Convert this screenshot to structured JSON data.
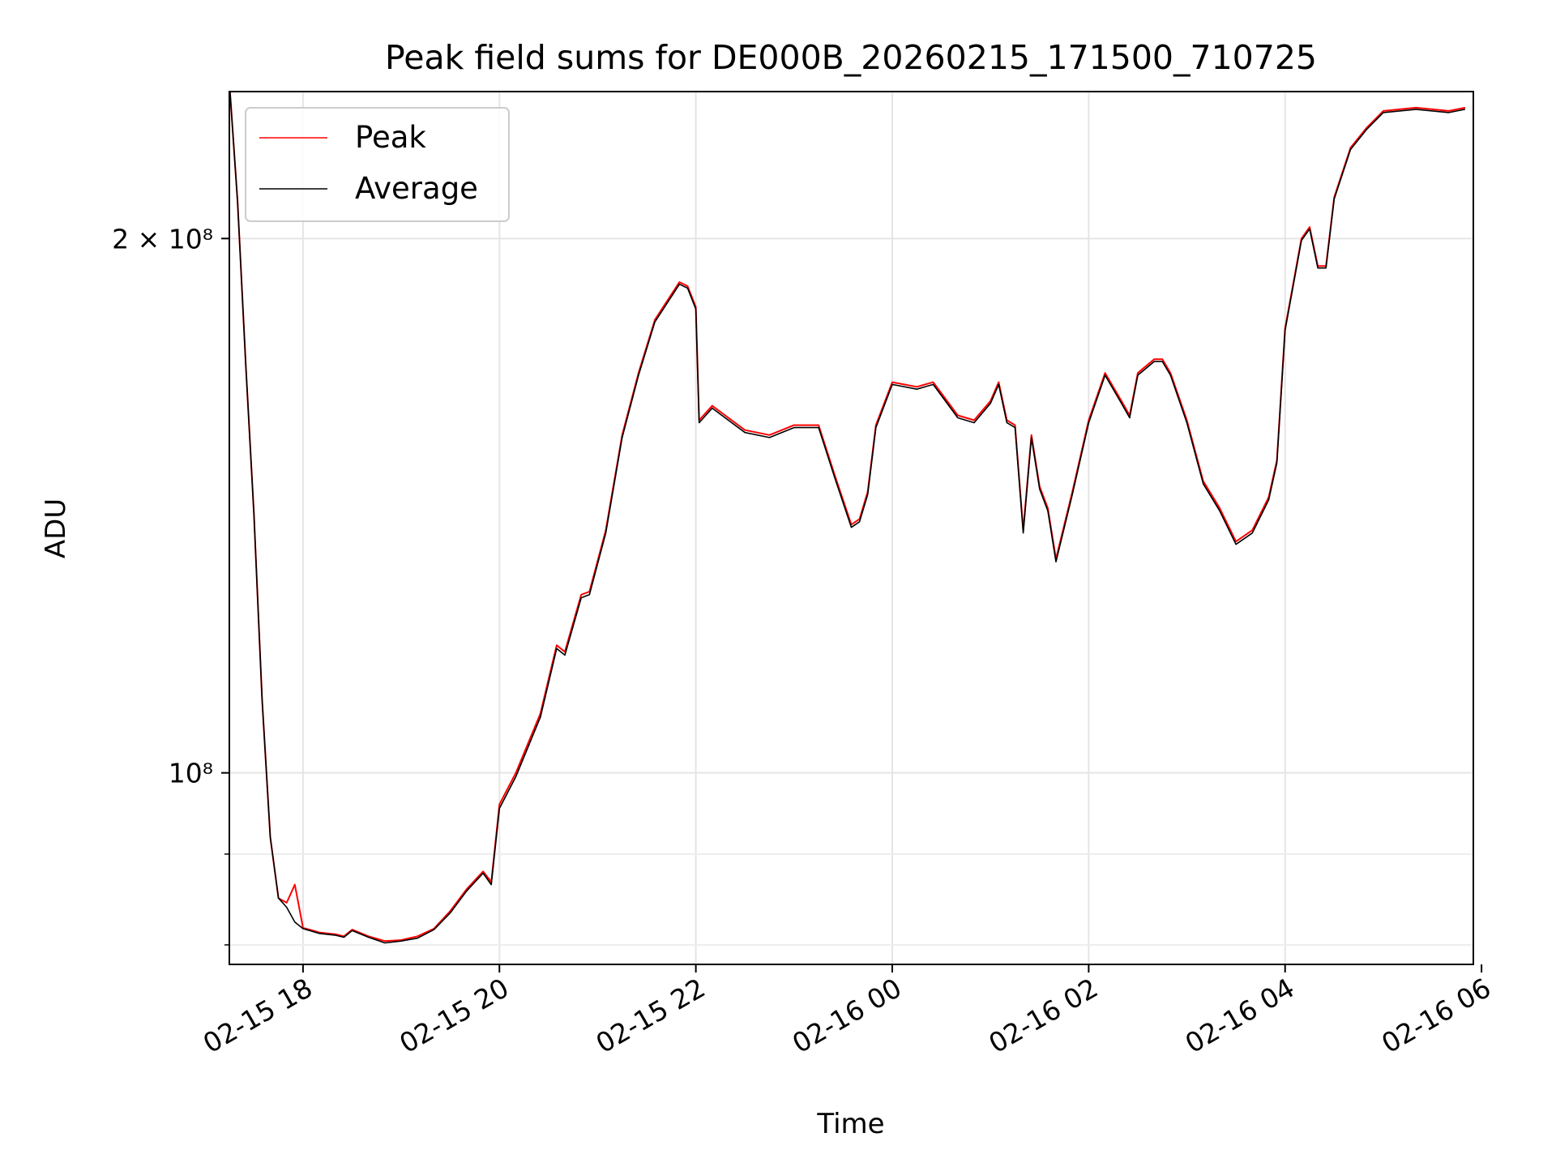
{
  "chart_data": {
    "type": "line",
    "title": "Peak field sums for DE000B_20260215_171500_710725",
    "xlabel": "Time",
    "ylabel": "ADU",
    "y_scale": "log",
    "grid": true,
    "legend_position": "top-left",
    "x_range": [
      "2026-02-15 17:15",
      "2026-02-16 05:55"
    ],
    "ylim": [
      78000000,
      242000000
    ],
    "x_ticks": [
      {
        "t": "2026-02-15 18:00",
        "label": "02-15 18"
      },
      {
        "t": "2026-02-15 20:00",
        "label": "02-15 20"
      },
      {
        "t": "2026-02-15 22:00",
        "label": "02-15 22"
      },
      {
        "t": "2026-02-16 00:00",
        "label": "02-16 00"
      },
      {
        "t": "2026-02-16 02:00",
        "label": "02-16 02"
      },
      {
        "t": "2026-02-16 04:00",
        "label": "02-16 04"
      },
      {
        "t": "2026-02-16 06:00",
        "label": "02-16 06"
      }
    ],
    "y_ticks": [
      {
        "v": 100000000,
        "label": "10⁸"
      },
      {
        "v": 200000000,
        "label": "2 × 10⁸"
      }
    ],
    "y_minor_ticks": [
      80000000,
      90000000
    ],
    "series": [
      {
        "name": "Peak",
        "color": "#ff0000",
        "points": [
          [
            "2026-02-15 17:15",
            245000000
          ],
          [
            "2026-02-15 17:20",
            210000000
          ],
          [
            "2026-02-15 17:25",
            170000000
          ],
          [
            "2026-02-15 17:30",
            140000000
          ],
          [
            "2026-02-15 17:35",
            110000000
          ],
          [
            "2026-02-15 17:40",
            92000000
          ],
          [
            "2026-02-15 17:45",
            85000000
          ],
          [
            "2026-02-15 17:50",
            84500000
          ],
          [
            "2026-02-15 17:55",
            86500000
          ],
          [
            "2026-02-15 18:00",
            81800000
          ],
          [
            "2026-02-15 18:10",
            81300000
          ],
          [
            "2026-02-15 18:20",
            81100000
          ],
          [
            "2026-02-15 18:25",
            80900000
          ],
          [
            "2026-02-15 18:30",
            81600000
          ],
          [
            "2026-02-15 18:40",
            80900000
          ],
          [
            "2026-02-15 18:50",
            80400000
          ],
          [
            "2026-02-15 19:00",
            80500000
          ],
          [
            "2026-02-15 19:10",
            80900000
          ],
          [
            "2026-02-15 19:20",
            81700000
          ],
          [
            "2026-02-15 19:30",
            83600000
          ],
          [
            "2026-02-15 19:40",
            86000000
          ],
          [
            "2026-02-15 19:50",
            88000000
          ],
          [
            "2026-02-15 19:55",
            86800000
          ],
          [
            "2026-02-15 20:00",
            96000000
          ],
          [
            "2026-02-15 20:10",
            100000000
          ],
          [
            "2026-02-15 20:25",
            108000000
          ],
          [
            "2026-02-15 20:35",
            118000000
          ],
          [
            "2026-02-15 20:40",
            117000000
          ],
          [
            "2026-02-15 20:50",
            126000000
          ],
          [
            "2026-02-15 20:55",
            126500000
          ],
          [
            "2026-02-15 21:05",
            137000000
          ],
          [
            "2026-02-15 21:15",
            155000000
          ],
          [
            "2026-02-15 21:25",
            168000000
          ],
          [
            "2026-02-15 21:35",
            180000000
          ],
          [
            "2026-02-15 21:50",
            189000000
          ],
          [
            "2026-02-15 21:55",
            188000000
          ],
          [
            "2026-02-15 22:00",
            183000000
          ],
          [
            "2026-02-15 22:02",
            158000000
          ],
          [
            "2026-02-15 22:10",
            161000000
          ],
          [
            "2026-02-15 22:30",
            156000000
          ],
          [
            "2026-02-15 22:45",
            155000000
          ],
          [
            "2026-02-15 23:00",
            157000000
          ],
          [
            "2026-02-15 23:15",
            157000000
          ],
          [
            "2026-02-15 23:25",
            147000000
          ],
          [
            "2026-02-15 23:35",
            138000000
          ],
          [
            "2026-02-15 23:40",
            139000000
          ],
          [
            "2026-02-15 23:45",
            144000000
          ],
          [
            "2026-02-15 23:50",
            157000000
          ],
          [
            "2026-02-16 00:00",
            166000000
          ],
          [
            "2026-02-16 00:15",
            165000000
          ],
          [
            "2026-02-16 00:25",
            166000000
          ],
          [
            "2026-02-16 00:40",
            159000000
          ],
          [
            "2026-02-16 00:50",
            158000000
          ],
          [
            "2026-02-16 01:00",
            162000000
          ],
          [
            "2026-02-16 01:05",
            166000000
          ],
          [
            "2026-02-16 01:10",
            158000000
          ],
          [
            "2026-02-16 01:15",
            157000000
          ],
          [
            "2026-02-16 01:20",
            137000000
          ],
          [
            "2026-02-16 01:25",
            155000000
          ],
          [
            "2026-02-16 01:30",
            145000000
          ],
          [
            "2026-02-16 01:35",
            141000000
          ],
          [
            "2026-02-16 01:40",
            132000000
          ],
          [
            "2026-02-16 01:50",
            144000000
          ],
          [
            "2026-02-16 02:00",
            158000000
          ],
          [
            "2026-02-16 02:10",
            168000000
          ],
          [
            "2026-02-16 02:20",
            162000000
          ],
          [
            "2026-02-16 02:25",
            159000000
          ],
          [
            "2026-02-16 02:30",
            168000000
          ],
          [
            "2026-02-16 02:40",
            171000000
          ],
          [
            "2026-02-16 02:45",
            171000000
          ],
          [
            "2026-02-16 02:50",
            168000000
          ],
          [
            "2026-02-16 03:00",
            158000000
          ],
          [
            "2026-02-16 03:10",
            146000000
          ],
          [
            "2026-02-16 03:20",
            141000000
          ],
          [
            "2026-02-16 03:30",
            135000000
          ],
          [
            "2026-02-16 03:40",
            137000000
          ],
          [
            "2026-02-16 03:50",
            143000000
          ],
          [
            "2026-02-16 03:55",
            150000000
          ],
          [
            "2026-02-16 04:00",
            178000000
          ],
          [
            "2026-02-16 04:10",
            200000000
          ],
          [
            "2026-02-16 04:15",
            203000000
          ],
          [
            "2026-02-16 04:20",
            193000000
          ],
          [
            "2026-02-16 04:25",
            193000000
          ],
          [
            "2026-02-16 04:30",
            211000000
          ],
          [
            "2026-02-16 04:40",
            225000000
          ],
          [
            "2026-02-16 04:50",
            231000000
          ],
          [
            "2026-02-16 05:00",
            236000000
          ],
          [
            "2026-02-16 05:20",
            237000000
          ],
          [
            "2026-02-16 05:40",
            236000000
          ],
          [
            "2026-02-16 05:50",
            237000000
          ]
        ]
      },
      {
        "name": "Average",
        "color": "#000000",
        "points": [
          [
            "2026-02-15 17:15",
            245000000
          ],
          [
            "2026-02-15 17:20",
            210000000
          ],
          [
            "2026-02-15 17:25",
            170000000
          ],
          [
            "2026-02-15 17:30",
            140000000
          ],
          [
            "2026-02-15 17:35",
            110000000
          ],
          [
            "2026-02-15 17:40",
            92000000
          ],
          [
            "2026-02-15 17:45",
            85000000
          ],
          [
            "2026-02-15 17:50",
            84000000
          ],
          [
            "2026-02-15 17:55",
            82400000
          ],
          [
            "2026-02-15 18:00",
            81700000
          ],
          [
            "2026-02-15 18:10",
            81200000
          ],
          [
            "2026-02-15 18:20",
            81000000
          ],
          [
            "2026-02-15 18:25",
            80800000
          ],
          [
            "2026-02-15 18:30",
            81500000
          ],
          [
            "2026-02-15 18:40",
            80800000
          ],
          [
            "2026-02-15 18:50",
            80200000
          ],
          [
            "2026-02-15 19:00",
            80400000
          ],
          [
            "2026-02-15 19:10",
            80700000
          ],
          [
            "2026-02-15 19:20",
            81600000
          ],
          [
            "2026-02-15 19:30",
            83400000
          ],
          [
            "2026-02-15 19:40",
            85800000
          ],
          [
            "2026-02-15 19:50",
            87800000
          ],
          [
            "2026-02-15 19:55",
            86500000
          ],
          [
            "2026-02-15 20:00",
            95500000
          ],
          [
            "2026-02-15 20:10",
            99500000
          ],
          [
            "2026-02-15 20:25",
            107500000
          ],
          [
            "2026-02-15 20:35",
            117500000
          ],
          [
            "2026-02-15 20:40",
            116500000
          ],
          [
            "2026-02-15 20:50",
            125500000
          ],
          [
            "2026-02-15 20:55",
            126000000
          ],
          [
            "2026-02-15 21:05",
            136500000
          ],
          [
            "2026-02-15 21:15",
            154500000
          ],
          [
            "2026-02-15 21:25",
            167500000
          ],
          [
            "2026-02-15 21:35",
            179500000
          ],
          [
            "2026-02-15 21:50",
            188500000
          ],
          [
            "2026-02-15 21:55",
            187500000
          ],
          [
            "2026-02-15 22:00",
            182500000
          ],
          [
            "2026-02-15 22:02",
            157500000
          ],
          [
            "2026-02-15 22:10",
            160500000
          ],
          [
            "2026-02-15 22:30",
            155500000
          ],
          [
            "2026-02-15 22:45",
            154500000
          ],
          [
            "2026-02-15 23:00",
            156500000
          ],
          [
            "2026-02-15 23:15",
            156500000
          ],
          [
            "2026-02-15 23:25",
            146500000
          ],
          [
            "2026-02-15 23:35",
            137500000
          ],
          [
            "2026-02-15 23:40",
            138500000
          ],
          [
            "2026-02-15 23:45",
            143500000
          ],
          [
            "2026-02-15 23:50",
            156500000
          ],
          [
            "2026-02-16 00:00",
            165500000
          ],
          [
            "2026-02-16 00:15",
            164500000
          ],
          [
            "2026-02-16 00:25",
            165500000
          ],
          [
            "2026-02-16 00:40",
            158500000
          ],
          [
            "2026-02-16 00:50",
            157500000
          ],
          [
            "2026-02-16 01:00",
            161500000
          ],
          [
            "2026-02-16 01:05",
            165500000
          ],
          [
            "2026-02-16 01:10",
            157500000
          ],
          [
            "2026-02-16 01:15",
            156500000
          ],
          [
            "2026-02-16 01:20",
            136500000
          ],
          [
            "2026-02-16 01:25",
            154500000
          ],
          [
            "2026-02-16 01:30",
            144500000
          ],
          [
            "2026-02-16 01:35",
            140500000
          ],
          [
            "2026-02-16 01:40",
            131500000
          ],
          [
            "2026-02-16 01:50",
            143500000
          ],
          [
            "2026-02-16 02:00",
            157500000
          ],
          [
            "2026-02-16 02:10",
            167500000
          ],
          [
            "2026-02-16 02:20",
            161500000
          ],
          [
            "2026-02-16 02:25",
            158500000
          ],
          [
            "2026-02-16 02:30",
            167500000
          ],
          [
            "2026-02-16 02:40",
            170500000
          ],
          [
            "2026-02-16 02:45",
            170500000
          ],
          [
            "2026-02-16 02:50",
            167500000
          ],
          [
            "2026-02-16 03:00",
            157500000
          ],
          [
            "2026-02-16 03:10",
            145500000
          ],
          [
            "2026-02-16 03:20",
            140500000
          ],
          [
            "2026-02-16 03:30",
            134500000
          ],
          [
            "2026-02-16 03:40",
            136500000
          ],
          [
            "2026-02-16 03:50",
            142500000
          ],
          [
            "2026-02-16 03:55",
            149500000
          ],
          [
            "2026-02-16 04:00",
            177500000
          ],
          [
            "2026-02-16 04:10",
            199500000
          ],
          [
            "2026-02-16 04:15",
            202500000
          ],
          [
            "2026-02-16 04:20",
            192500000
          ],
          [
            "2026-02-16 04:25",
            192500000
          ],
          [
            "2026-02-16 04:30",
            210500000
          ],
          [
            "2026-02-16 04:40",
            224500000
          ],
          [
            "2026-02-16 04:50",
            230500000
          ],
          [
            "2026-02-16 05:00",
            235500000
          ],
          [
            "2026-02-16 05:20",
            236500000
          ],
          [
            "2026-02-16 05:40",
            235500000
          ],
          [
            "2026-02-16 05:50",
            236500000
          ]
        ]
      }
    ]
  }
}
